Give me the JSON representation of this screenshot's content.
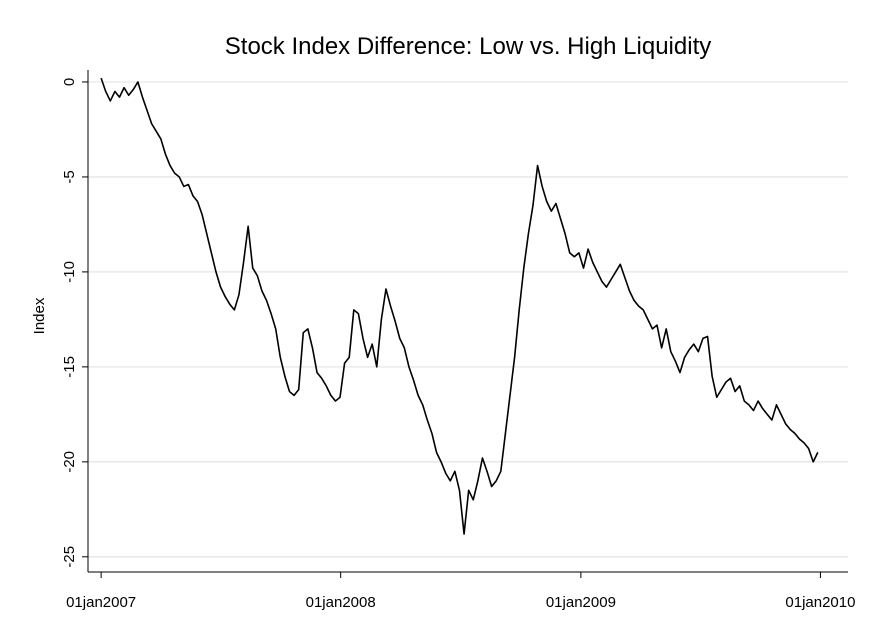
{
  "chart_data": {
    "type": "line",
    "title": "Stock Index Difference: Low vs. High Liquidity",
    "y_label": "Index",
    "x": [
      "2007-01-01",
      "2007-01-08",
      "2007-01-15",
      "2007-01-22",
      "2007-01-29",
      "2007-02-05",
      "2007-02-12",
      "2007-02-19",
      "2007-02-26",
      "2007-03-05",
      "2007-03-12",
      "2007-03-19",
      "2007-03-26",
      "2007-04-02",
      "2007-04-09",
      "2007-04-16",
      "2007-04-23",
      "2007-04-30",
      "2007-05-07",
      "2007-05-14",
      "2007-05-21",
      "2007-05-28",
      "2007-06-04",
      "2007-06-11",
      "2007-06-18",
      "2007-06-25",
      "2007-07-02",
      "2007-07-09",
      "2007-07-16",
      "2007-07-23",
      "2007-07-30",
      "2007-08-06",
      "2007-08-13",
      "2007-08-20",
      "2007-08-27",
      "2007-09-03",
      "2007-09-10",
      "2007-09-17",
      "2007-09-24",
      "2007-10-01",
      "2007-10-08",
      "2007-10-15",
      "2007-10-22",
      "2007-10-29",
      "2007-11-05",
      "2007-11-12",
      "2007-11-19",
      "2007-11-26",
      "2007-12-03",
      "2007-12-10",
      "2007-12-17",
      "2007-12-24",
      "2007-12-31",
      "2008-01-07",
      "2008-01-14",
      "2008-01-21",
      "2008-01-28",
      "2008-02-04",
      "2008-02-11",
      "2008-02-18",
      "2008-02-25",
      "2008-03-03",
      "2008-03-10",
      "2008-03-17",
      "2008-03-24",
      "2008-03-31",
      "2008-04-07",
      "2008-04-14",
      "2008-04-21",
      "2008-04-28",
      "2008-05-05",
      "2008-05-12",
      "2008-05-19",
      "2008-05-26",
      "2008-06-02",
      "2008-06-09",
      "2008-06-16",
      "2008-06-23",
      "2008-06-30",
      "2008-07-07",
      "2008-07-14",
      "2008-07-21",
      "2008-07-28",
      "2008-08-04",
      "2008-08-11",
      "2008-08-18",
      "2008-08-25",
      "2008-09-01",
      "2008-09-08",
      "2008-09-15",
      "2008-09-22",
      "2008-09-29",
      "2008-10-06",
      "2008-10-13",
      "2008-10-20",
      "2008-10-27",
      "2008-11-03",
      "2008-11-10",
      "2008-11-17",
      "2008-11-24",
      "2008-12-01",
      "2008-12-08",
      "2008-12-15",
      "2008-12-22",
      "2008-12-29",
      "2009-01-05",
      "2009-01-12",
      "2009-01-19",
      "2009-01-26",
      "2009-02-02",
      "2009-02-09",
      "2009-02-16",
      "2009-02-23",
      "2009-03-02",
      "2009-03-09",
      "2009-03-16",
      "2009-03-23",
      "2009-03-30",
      "2009-04-06",
      "2009-04-13",
      "2009-04-20",
      "2009-04-27",
      "2009-05-04",
      "2009-05-11",
      "2009-05-18",
      "2009-05-25",
      "2009-06-01",
      "2009-06-08",
      "2009-06-15",
      "2009-06-22",
      "2009-06-29",
      "2009-07-06",
      "2009-07-13",
      "2009-07-20",
      "2009-07-27",
      "2009-08-03",
      "2009-08-10",
      "2009-08-17",
      "2009-08-24",
      "2009-08-31",
      "2009-09-07",
      "2009-09-14",
      "2009-09-21",
      "2009-09-28",
      "2009-10-05",
      "2009-10-12",
      "2009-10-19",
      "2009-10-26",
      "2009-11-02",
      "2009-11-09",
      "2009-11-16",
      "2009-11-23",
      "2009-11-30",
      "2009-12-07",
      "2009-12-14",
      "2009-12-21",
      "2009-12-28"
    ],
    "series": [
      {
        "name": "Index",
        "color": "#000000",
        "values": [
          0.2,
          -0.5,
          -1.0,
          -0.5,
          -0.8,
          -0.3,
          -0.7,
          -0.4,
          0,
          -0.8,
          -1.5,
          -2.2,
          -2.6,
          -3.0,
          -3.8,
          -4.4,
          -4.8,
          -5.0,
          -5.5,
          -5.4,
          -6.0,
          -6.3,
          -7.0,
          -8.0,
          -9.0,
          -10.0,
          -10.8,
          -11.3,
          -11.7,
          -12.0,
          -11.2,
          -9.5,
          -7.6,
          -9.8,
          -10.2,
          -11.0,
          -11.5,
          -12.2,
          -13.0,
          -14.5,
          -15.5,
          -16.3,
          -16.5,
          -16.2,
          -13.2,
          -13.0,
          -14.0,
          -15.3,
          -15.6,
          -16.0,
          -16.5,
          -16.8,
          -16.6,
          -14.8,
          -14.5,
          -12.0,
          -12.2,
          -13.5,
          -14.5,
          -13.8,
          -15.0,
          -12.5,
          -10.9,
          -11.8,
          -12.6,
          -13.5,
          -14.0,
          -15.0,
          -15.7,
          -16.5,
          -17.0,
          -17.8,
          -18.5,
          -19.5,
          -20.0,
          -20.6,
          -21.0,
          -20.5,
          -21.5,
          -23.8,
          -21.5,
          -22.0,
          -21.0,
          -19.8,
          -20.5,
          -21.3,
          -21.0,
          -20.5,
          -18.5,
          -16.5,
          -14.5,
          -12.0,
          -9.8,
          -8.0,
          -6.5,
          -4.4,
          -5.5,
          -6.3,
          -6.8,
          -6.4,
          -7.2,
          -8.0,
          -9.0,
          -9.2,
          -9.0,
          -9.8,
          -8.8,
          -9.5,
          -10.0,
          -10.5,
          -10.8,
          -10.4,
          -10.0,
          -9.6,
          -10.3,
          -11.0,
          -11.5,
          -11.8,
          -12.0,
          -12.5,
          -13.0,
          -12.8,
          -14.0,
          -13.0,
          -14.2,
          -14.7,
          -15.3,
          -14.5,
          -14.1,
          -13.8,
          -14.2,
          -13.5,
          -13.4,
          -15.5,
          -16.6,
          -16.2,
          -15.8,
          -15.6,
          -16.3,
          -16.0,
          -16.8,
          -17.0,
          -17.3,
          -16.8,
          -17.2,
          -17.5,
          -17.8,
          -17.0,
          -17.5,
          -18.0,
          -18.3,
          -18.5,
          -18.8,
          -19.0,
          -19.3,
          -20.0,
          -19.5
        ]
      }
    ],
    "xlim": [
      "2006-12-12",
      "2010-02-12"
    ],
    "xticks": [
      {
        "value": "2007-01-01",
        "label": "01jan2007"
      },
      {
        "value": "2008-01-01",
        "label": "01jan2008"
      },
      {
        "value": "2009-01-01",
        "label": "01jan2009"
      },
      {
        "value": "2010-01-01",
        "label": "01jan2010"
      }
    ],
    "ylim": [
      -25.8,
      0.63
    ],
    "yticks": [
      0,
      -5,
      -10,
      -15,
      -20,
      -25
    ],
    "grid": true
  }
}
